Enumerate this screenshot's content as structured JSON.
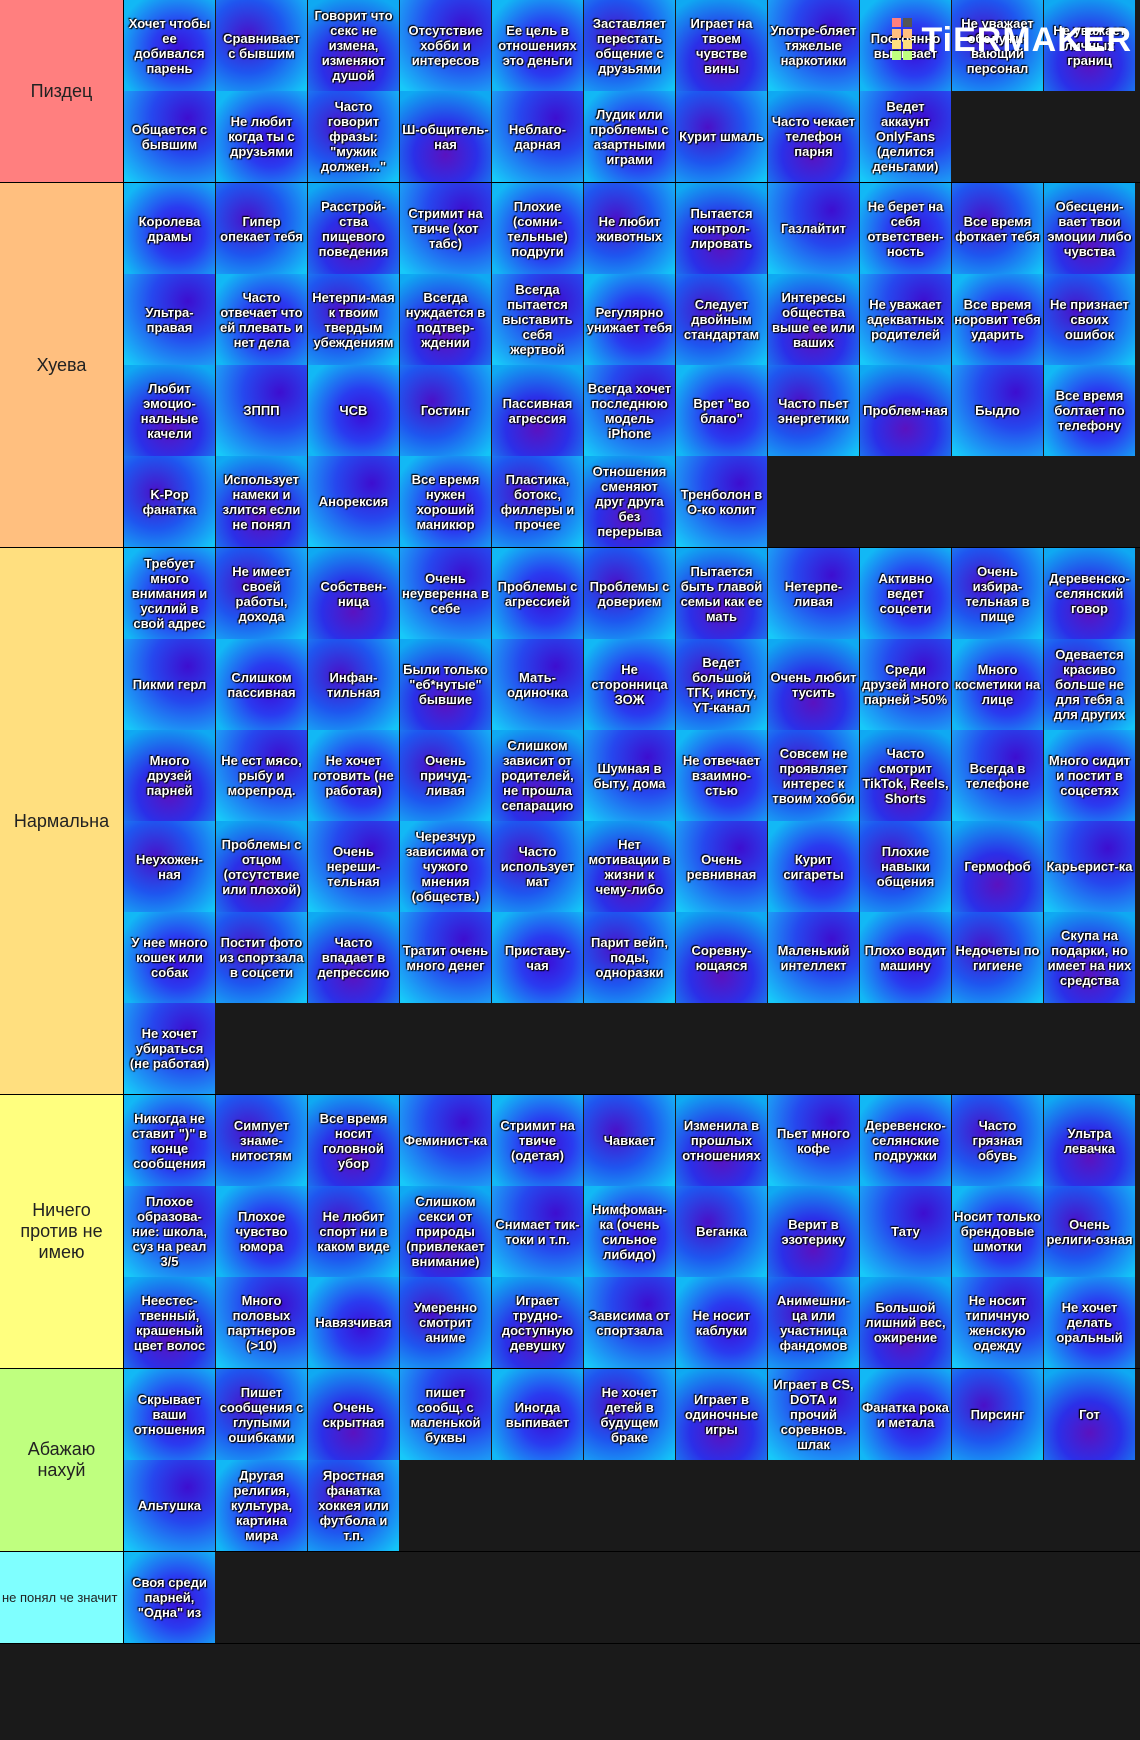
{
  "logo": "TiERMAKER",
  "tiers": [
    {
      "label": "Пиздец",
      "color": "#ff7f7f",
      "items": [
        "Хочет чтобы ее добивался парень",
        "Сравнивает с бывшим",
        "Говорит что секс не измена, изменяют душой",
        "Отсутствие хобби и интересов",
        "Ее цель в отношениях это деньги",
        "Заставляет перестать общение с друзьями",
        "Играет на твоем чувстве вины",
        "Употре-бляет тяжелые наркотики",
        "Постоянно выпивает",
        "Не уважает обслужи-вающий персонал",
        "Не уважает личных границ",
        "Общается с бывшим",
        "Не любит когда ты с друзьями",
        "Часто говорит фразы: \"мужик должен...\"",
        "Ш-общитель-ная",
        "Неблаго-дарная",
        "Лудик или проблемы с азартными играми",
        "Курит шмаль",
        "Часто чекает телефон парня",
        "Ведет аккаунт OnlyFans (делится деньгами)"
      ]
    },
    {
      "label": "Хуева",
      "color": "#ffbf7f",
      "items": [
        "Королева драмы",
        "Гипер опекает тебя",
        "Расстрой-ства пищевого поведения",
        "Стримит на твиче (хот табс)",
        "Плохие (сомни-тельные) подруги",
        "Не любит животных",
        "Пытается контрол-лировать",
        "Газлайтит",
        "Не берет на себя ответствен-ность",
        "Все время фоткает тебя",
        "Обесцени-вает твои эмоции либо чувства",
        "Ультра-правая",
        "Часто отвечает что ей плевать и нет дела",
        "Нетерпи-мая к твоим твердым убеждениям",
        "Всегда нуждается в подтвер-ждении",
        "Всегда пытается выставить себя жертвой",
        "Регулярно унижает тебя",
        "Следует двойным стандартам",
        "Интересы общества выше ее или ваших",
        "Не уважает адекватных родителей",
        "Все время норовит тебя ударить",
        "Не признает своих ошибок",
        "Любит эмоцио-нальные качели",
        "ЗППП",
        "ЧСВ",
        "Гостинг",
        "Пассивная агрессия",
        "Всегда хочет последнюю модель iPhone",
        "Врет \"во благо\"",
        "Часто пьет энергетики",
        "Проблем-ная",
        "Быдло",
        "Все время болтает по телефону",
        "K-Pop фанатка",
        "Использует намеки и злится если не понял",
        "Анорексия",
        "Все время нужен хороший маникюр",
        "Пластика, ботокс, филлеры и прочее",
        "Отношения сменяют друг друга без перерыва",
        "Тренболон в О-ко колит"
      ]
    },
    {
      "label": "Нармальна",
      "color": "#ffdf7f",
      "items": [
        "Требует много внимания и усилий в свой адрес",
        "Не имеет своей работы, дохода",
        "Собствен-ница",
        "Очень неуверенна в себе",
        "Проблемы с агрессией",
        "Проблемы с доверием",
        "Пытается быть главой семьи как ее мать",
        "Нетерпе-ливая",
        "Активно ведет соцсети",
        "Очень избира-тельная в пище",
        "Деревенско-селянский говор",
        "Пикми герл",
        "Слишком пассивная",
        "Инфан-тильная",
        "Были только \"еб*нутые\" бывшие",
        "Мать-одиночка",
        "Не сторонница ЗОЖ",
        "Ведет большой ТГК, инсту, YT-канал",
        "Очень любит тусить",
        "Среди друзей много парней >50%",
        "Много косметики на лице",
        "Одевается красиво больше не для тебя а для других",
        "Много друзей парней",
        "Не ест мясо, рыбу и морепрод.",
        "Не хочет готовить (не работая)",
        "Очень причуд-ливая",
        "Слишком зависит от родителей, не прошла сепарацию",
        "Шумная в быту, дома",
        "Не отвечает взаимно-стью",
        "Совсем не проявляет интерес к твоим хобби",
        "Часто смотрит TikTok, Reels, Shorts",
        "Всегда в телефоне",
        "Много сидит и постит в соцсетях",
        "Неухожен-ная",
        "Проблемы с отцом (отсутствие или плохой)",
        "Очень нереши-тельная",
        "Черезчур зависима от чужого мнения (обществ.)",
        "Часто использует мат",
        "Нет мотивации в жизни к чему-либо",
        "Очень ревнивная",
        "Курит сигареты",
        "Плохие навыки общения",
        "Гермофоб",
        "Карьерист-ка",
        "У нее много кошек или собак",
        "Постит фото из спортзала в соцсети",
        "Часто впадает в депрессию",
        "Тратит очень много денег",
        "Приставу-чая",
        "Парит вейп, поды, одноразки",
        "Соревну-ющаяся",
        "Маленький интеллект",
        "Плохо водит машину",
        "Недочеты по гигиене",
        "Скупа на подарки, но имеет на них средства",
        "Не хочет убираться (не работая)"
      ]
    },
    {
      "label": "Ничего против не имею",
      "color": "#ffff7f",
      "items": [
        "Никогда не ставит \")\" в конце сообщения",
        "Симпует знаме-нитостям",
        "Все время носит головной убор",
        "Феминист-ка",
        "Стримит на твиче (одетая)",
        "Чавкает",
        "Изменила в прошлых отношениях",
        "Пьет много кофе",
        "Деревенско-селянские подружки",
        "Часто грязная обувь",
        "Ультра левачка",
        "Плохое образова-ние: школа, суз на реал 3/5",
        "Плохое чувство юмора",
        "Не любит спорт ни в каком виде",
        "Слишком секси от природы (привлекает внимание)",
        "Снимает тик-токи и т.п.",
        "Нимфоман-ка (очень сильное либидо)",
        "Веганка",
        "Верит в эзотерику",
        "Тату",
        "Носит только брендовые шмотки",
        "Очень религи-озная",
        "Неестес-твенный, крашеный цвет волос",
        "Много половых партнеров (>10)",
        "Навязчивая",
        "Умеренно смотрит аниме",
        "Играет трудно-доступную девушку",
        "Зависима от спортзала",
        "Не носит каблуки",
        "Анимешни-ца или участница фандомов",
        "Большой лишний вес, ожирение",
        "Не носит типичную женскую одежду",
        "Не хочет делать оральный"
      ]
    },
    {
      "label": "Абажаю нахуй",
      "color": "#bfff7f",
      "items": [
        "Скрывает ваши отношения",
        "Пишет сообщения с глупыми ошибками",
        "Очень скрытная",
        "пишет сообщ. с маленькой буквы",
        "Иногда выпивает",
        "Не хочет детей в будущем браке",
        "Играет в одиночные игры",
        "Играет в CS, DOTA и прочий соревнов. шлак",
        "Фанатка рока и метала",
        "Пирсинг",
        "Гот",
        "Альтушка",
        "Другая религия, культура, картина мира",
        "Яростная фанатка хоккея или футбола и т.п."
      ]
    },
    {
      "label": "не понял че значит",
      "color": "#7fffff",
      "items": [
        "Своя среди парней, \"Одна\" из"
      ]
    }
  ]
}
